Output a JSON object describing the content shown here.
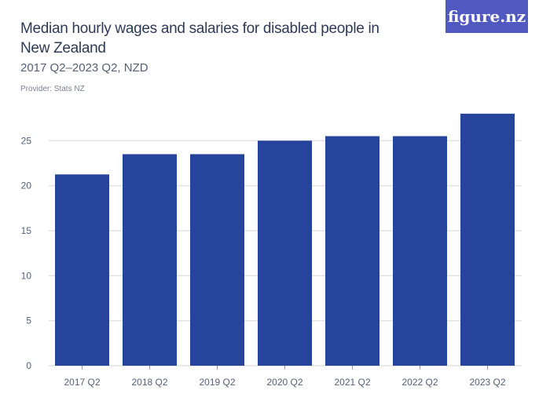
{
  "header": {
    "title": "Median hourly wages and salaries for disabled people in New Zealand",
    "subtitle": "2017 Q2–2023 Q2, NZD",
    "provider": "Provider: Stats NZ",
    "logo": "figure.nz"
  },
  "colors": {
    "bar": "#27449c",
    "logo_bg": "#5059c0",
    "grid": "#e3e3e3"
  },
  "chart_data": {
    "type": "bar",
    "title": "Median hourly wages and salaries for disabled people in New Zealand",
    "subtitle": "2017 Q2–2023 Q2, NZD",
    "categories": [
      "2017 Q2",
      "2018 Q2",
      "2019 Q2",
      "2020 Q2",
      "2021 Q2",
      "2022 Q2",
      "2023 Q2"
    ],
    "values": [
      21.25,
      23.5,
      23.5,
      25,
      25.5,
      25.5,
      28
    ],
    "yticks": [
      0,
      5,
      10,
      15,
      20,
      25
    ],
    "ylim": [
      0,
      28
    ],
    "grid": true,
    "xlabel": "",
    "ylabel": ""
  }
}
